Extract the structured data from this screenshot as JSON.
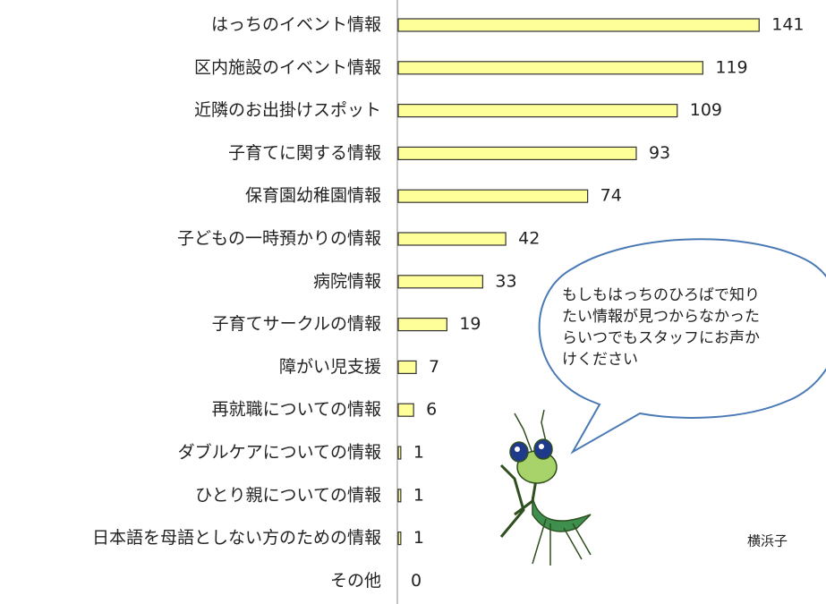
{
  "chart_data": {
    "type": "bar",
    "orientation": "horizontal",
    "categories": [
      "はっちのイベント情報",
      "区内施設のイベント情報",
      "近隣のお出掛けスポット",
      "子育てに関する情報",
      "保育園幼稚園情報",
      "子どもの一時預かりの情報",
      "病院情報",
      "子育てサークルの情報",
      "障がい児支援",
      "再就職についての情報",
      "ダブルケアについての情報",
      "ひとり親についての情報",
      "日本語を母語としない方のための情報",
      "その他"
    ],
    "values": [
      141,
      119,
      109,
      93,
      74,
      42,
      33,
      19,
      7,
      6,
      1,
      1,
      1,
      0
    ],
    "color": "#ffff99",
    "annotation": [
      "もしもはっちのひろばで知り",
      "たい情報が見つからなかった",
      "らいつでもスタッフにお声か",
      "けください"
    ],
    "footer_text": "横浜子"
  }
}
